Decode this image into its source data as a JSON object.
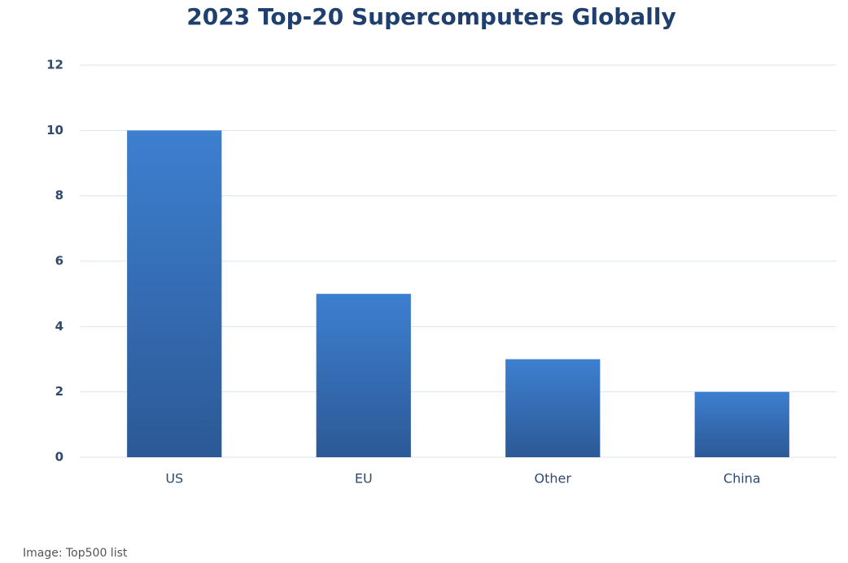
{
  "chart_data": {
    "type": "bar",
    "title": "2023 Top-20 Supercomputers Globally",
    "categories": [
      "US",
      "EU",
      "Other",
      "China"
    ],
    "values": [
      10,
      5,
      3,
      2
    ],
    "color": "#3d7fd0",
    "ylim": [
      0,
      12
    ],
    "yticks": [
      0,
      2,
      4,
      6,
      8,
      10,
      12
    ],
    "grid": true,
    "caption": "Image: Top500 list"
  }
}
